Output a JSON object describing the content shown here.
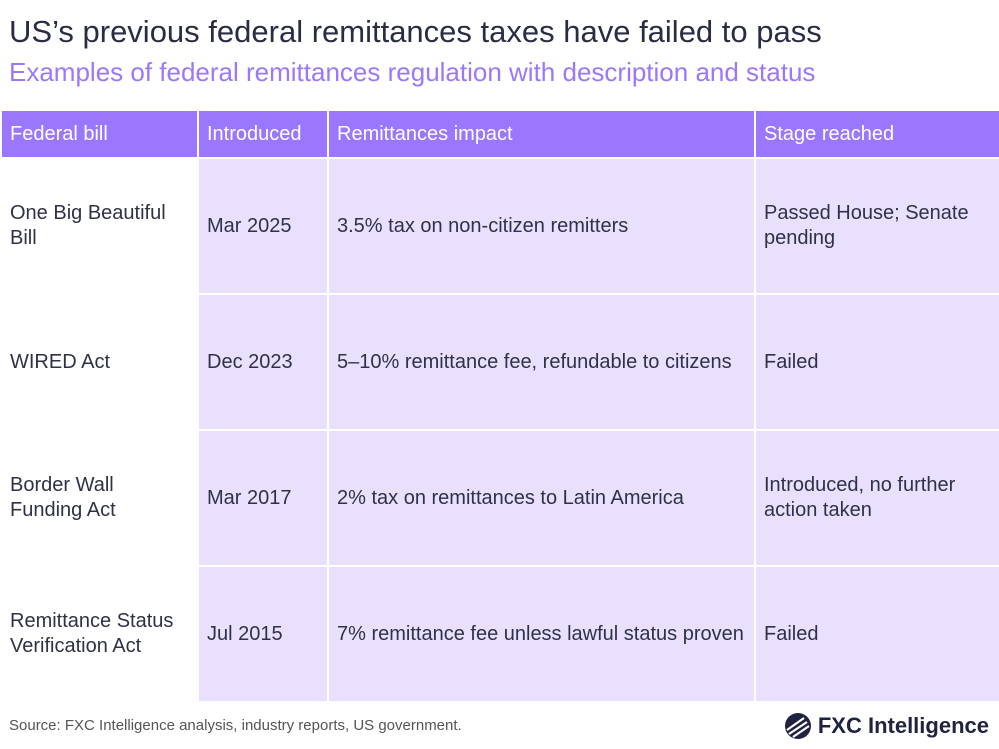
{
  "title": "US’s previous federal remittances taxes have failed to pass",
  "subtitle": "Examples of federal remittances regulation with description and status",
  "chart_data": {
    "type": "table",
    "columns": [
      "Federal bill",
      "Introduced",
      "Remittances impact",
      "Stage reached"
    ],
    "rows": [
      [
        "One Big Beautiful Bill",
        "Mar 2025",
        "3.5% tax on non-citizen remitters",
        "Passed House; Senate pending"
      ],
      [
        "WIRED Act",
        "Dec 2023",
        "5–10% remittance fee, refundable to citizens",
        "Failed"
      ],
      [
        "Border Wall Funding Act",
        "Mar 2017",
        "2% tax on remittances to Latin America",
        "Introduced, no further action taken"
      ],
      [
        "Remittance Status Verification Act",
        "Jul 2015",
        "7% remittance fee unless lawful status proven",
        "Failed"
      ]
    ]
  },
  "source": "Source: FXC Intelligence analysis, industry reports, US government.",
  "logo": "FXC Intelligence",
  "colors": {
    "header": "#9b77fd",
    "cell": "#e9e0fd",
    "subtitle": "#9b77fd"
  }
}
